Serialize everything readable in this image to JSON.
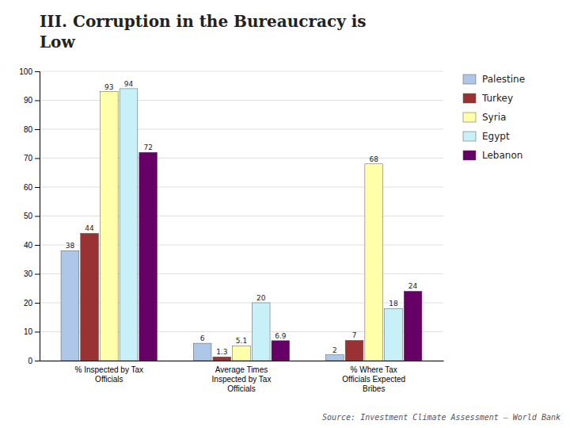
{
  "chart_data": {
    "type": "bar",
    "title": "III. Corruption in the Bureaucracy is\nLow",
    "annotations": [
      "Source: Investment Climate Assessment – World Bank"
    ],
    "categories": [
      "% Inspected by Tax\nOfficials",
      "Average Times\nInspected by Tax\nOfficials",
      "% Where Tax\nOfficials Expected\nBribes"
    ],
    "series": [
      {
        "name": "Palestine",
        "color": "#aec6e8",
        "values": [
          38,
          6,
          2
        ]
      },
      {
        "name": "Turkey",
        "color": "#993333",
        "values": [
          44,
          1.3,
          7
        ]
      },
      {
        "name": "Syria",
        "color": "#ffffaa",
        "values": [
          93,
          5.1,
          68
        ]
      },
      {
        "name": "Egypt",
        "color": "#c8f0f8",
        "values": [
          94,
          20,
          18
        ]
      },
      {
        "name": "Lebanon",
        "color": "#660066",
        "values": [
          72,
          6.9,
          24
        ]
      }
    ],
    "ylim": [
      0,
      100
    ],
    "yticks": [
      0,
      10,
      20,
      30,
      40,
      50,
      60,
      70,
      80,
      90,
      100
    ],
    "grid": true,
    "data_labels": true,
    "legend": "right"
  }
}
